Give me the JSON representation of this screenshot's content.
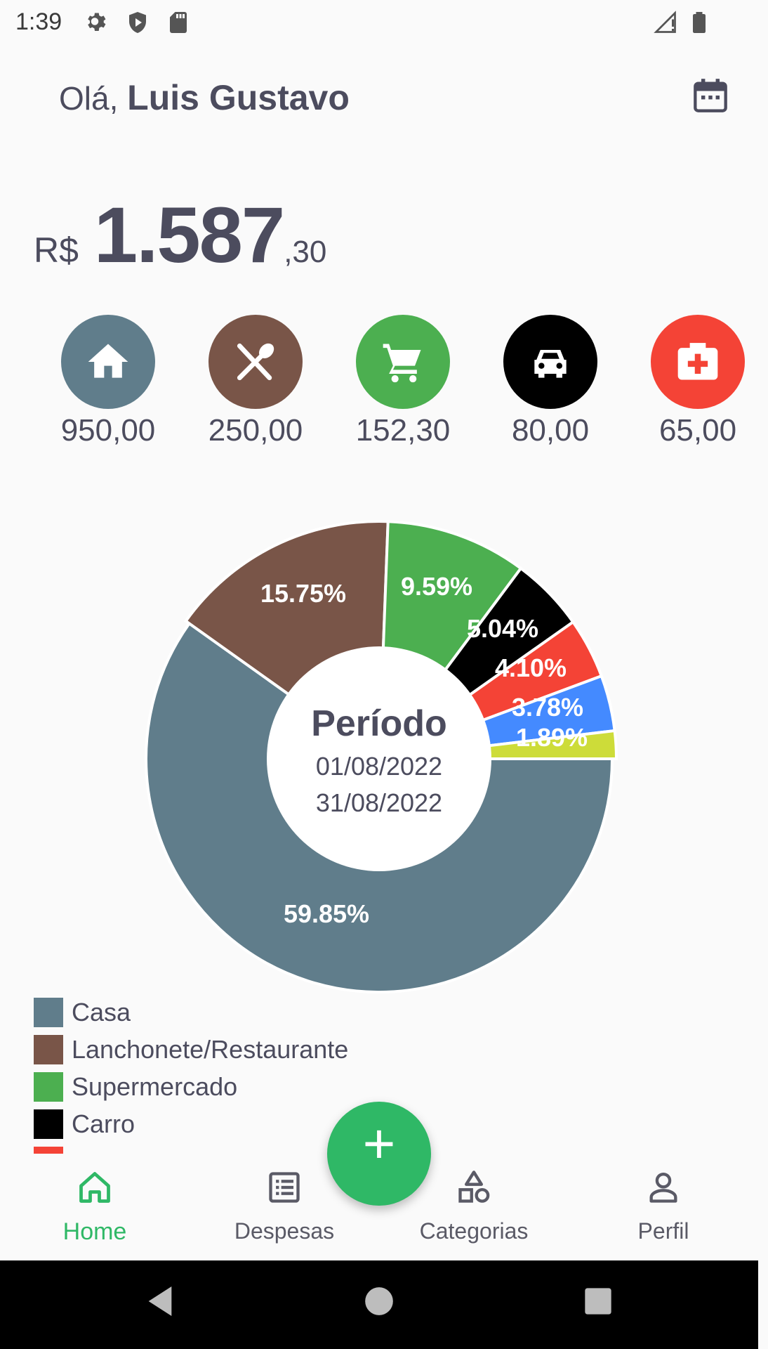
{
  "status_bar": {
    "time": "1:39",
    "icons": [
      "gear-icon",
      "shield-play-icon",
      "sd-card-icon",
      "signal-icon",
      "battery-icon"
    ]
  },
  "header": {
    "greeting_prefix": "Olá,",
    "user_name": "Luis Gustavo",
    "calendar_icon": "calendar-icon"
  },
  "total": {
    "currency": "R$",
    "integer": "1.587",
    "decimal": ",30"
  },
  "categories": [
    {
      "icon": "home-icon",
      "color": "#607d8b",
      "amount": "950,00"
    },
    {
      "icon": "utensils-icon",
      "color": "#795548",
      "amount": "250,00"
    },
    {
      "icon": "cart-icon",
      "color": "#4caf50",
      "amount": "152,30"
    },
    {
      "icon": "car-icon",
      "color": "#000000",
      "amount": "80,00"
    },
    {
      "icon": "medical-icon",
      "color": "#f44336",
      "amount": "65,00"
    }
  ],
  "chart_data": {
    "type": "pie",
    "categories": [
      "Casa",
      "Lanchonete/Restaurante",
      "Supermercado",
      "Carro",
      "",
      "",
      ""
    ],
    "values": [
      59.85,
      15.75,
      9.59,
      5.04,
      4.1,
      3.78,
      1.89
    ],
    "labels": [
      "59.85%",
      "15.75%",
      "9.59%",
      "5.04%",
      "4.10%",
      "3.78%",
      "1.89%"
    ],
    "colors": [
      "#607d8b",
      "#795548",
      "#4caf50",
      "#000000",
      "#f44336",
      "#448aff",
      "#cddc39"
    ],
    "donut": true
  },
  "period": {
    "title": "Período",
    "start": "01/08/2022",
    "end": "31/08/2022"
  },
  "legend": [
    {
      "label": "Casa",
      "color": "#607d8b"
    },
    {
      "label": "Lanchonete/Restaurante",
      "color": "#795548"
    },
    {
      "label": "Supermercado",
      "color": "#4caf50"
    },
    {
      "label": "Carro",
      "color": "#000000"
    },
    {
      "label": "",
      "color": "#f44336"
    }
  ],
  "fab": {
    "label": "+",
    "color": "#2fb866"
  },
  "nav": [
    {
      "label": "Home",
      "icon": "home-outline-icon",
      "active": true
    },
    {
      "label": "Despesas",
      "icon": "list-icon",
      "active": false
    },
    {
      "label": "Categorias",
      "icon": "shapes-icon",
      "active": false
    },
    {
      "label": "Perfil",
      "icon": "user-icon",
      "active": false
    }
  ]
}
